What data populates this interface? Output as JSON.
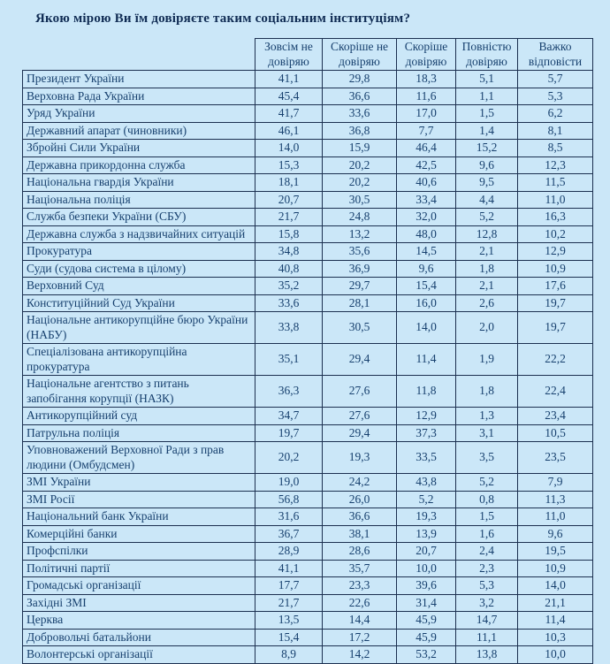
{
  "title": "Якою мірою Ви їм довіряєте таким соціальним інституціям?",
  "colors": {
    "page_background": "#cbe7f8",
    "text": "#17406e",
    "title_text": "#102c54",
    "border": "#1c3050"
  },
  "chart_data": {
    "type": "table",
    "columns": [
      "Зовсім не довіряю",
      "Скоріше  не довіряю",
      "Скоріше довіряю",
      "Повністю довіряю",
      "Важко відповісти"
    ],
    "rows": [
      {
        "label": "Президент України",
        "values": [
          "41,1",
          "29,8",
          "18,3",
          "5,1",
          "5,7"
        ]
      },
      {
        "label": "Верховна Рада України",
        "values": [
          "45,4",
          "36,6",
          "11,6",
          "1,1",
          "5,3"
        ]
      },
      {
        "label": "Уряд України",
        "values": [
          "41,7",
          "33,6",
          "17,0",
          "1,5",
          "6,2"
        ]
      },
      {
        "label": "Державний апарат (чиновники)",
        "values": [
          "46,1",
          "36,8",
          "7,7",
          "1,4",
          "8,1"
        ]
      },
      {
        "label": "Збройні Сили України",
        "values": [
          "14,0",
          "15,9",
          "46,4",
          "15,2",
          "8,5"
        ]
      },
      {
        "label": "Державна прикордонна служба",
        "values": [
          "15,3",
          "20,2",
          "42,5",
          "9,6",
          "12,3"
        ]
      },
      {
        "label": "Національна гвардія України",
        "values": [
          "18,1",
          "20,2",
          "40,6",
          "9,5",
          "11,5"
        ]
      },
      {
        "label": "Національна поліція",
        "values": [
          "20,7",
          "30,5",
          "33,4",
          "4,4",
          "11,0"
        ]
      },
      {
        "label": "Служба безпеки України (СБУ)",
        "values": [
          "21,7",
          "24,8",
          "32,0",
          "5,2",
          "16,3"
        ]
      },
      {
        "label": "Державна служба з надзвичайних ситуацій",
        "values": [
          "15,8",
          "13,2",
          "48,0",
          "12,8",
          "10,2"
        ]
      },
      {
        "label": "Прокуратура",
        "values": [
          "34,8",
          "35,6",
          "14,5",
          "2,1",
          "12,9"
        ]
      },
      {
        "label": "Суди (судова система в цілому)",
        "values": [
          "40,8",
          "36,9",
          "9,6",
          "1,8",
          "10,9"
        ]
      },
      {
        "label": "Верховний Суд",
        "values": [
          "35,2",
          "29,7",
          "15,4",
          "2,1",
          "17,6"
        ]
      },
      {
        "label": "Конституційний Суд України",
        "values": [
          "33,6",
          "28,1",
          "16,0",
          "2,6",
          "19,7"
        ]
      },
      {
        "label": "Національне антикорупційне бюро України (НАБУ)",
        "values": [
          "33,8",
          "30,5",
          "14,0",
          "2,0",
          "19,7"
        ]
      },
      {
        "label": "Спеціалізована антикорупційна прокуратура",
        "values": [
          "35,1",
          "29,4",
          "11,4",
          "1,9",
          "22,2"
        ]
      },
      {
        "label": "Національне агентство з питань запобігання корупції (НАЗК)",
        "values": [
          "36,3",
          "27,6",
          "11,8",
          "1,8",
          "22,4"
        ]
      },
      {
        "label": "Антикорупційний суд",
        "values": [
          "34,7",
          "27,6",
          "12,9",
          "1,3",
          "23,4"
        ]
      },
      {
        "label": "Патрульна поліція",
        "values": [
          "19,7",
          "29,4",
          "37,3",
          "3,1",
          "10,5"
        ]
      },
      {
        "label": "Уповноважений Верховної Ради  з прав людини (Омбудсмен)",
        "values": [
          "20,2",
          "19,3",
          "33,5",
          "3,5",
          "23,5"
        ]
      },
      {
        "label": "ЗМІ України",
        "values": [
          "19,0",
          "24,2",
          "43,8",
          "5,2",
          "7,9"
        ]
      },
      {
        "label": "ЗМІ Росії",
        "values": [
          "56,8",
          "26,0",
          "5,2",
          "0,8",
          "11,3"
        ]
      },
      {
        "label": "Національний банк України",
        "values": [
          "31,6",
          "36,6",
          "19,3",
          "1,5",
          "11,0"
        ]
      },
      {
        "label": "Комерційні банки",
        "values": [
          "36,7",
          "38,1",
          "13,9",
          "1,6",
          "9,6"
        ]
      },
      {
        "label": "Профспілки",
        "values": [
          "28,9",
          "28,6",
          "20,7",
          "2,4",
          "19,5"
        ]
      },
      {
        "label": "Політичні партії",
        "values": [
          "41,1",
          "35,7",
          "10,0",
          "2,3",
          "10,9"
        ]
      },
      {
        "label": "Громадські організації",
        "values": [
          "17,7",
          "23,3",
          "39,6",
          "5,3",
          "14,0"
        ]
      },
      {
        "label": "Західні ЗМІ",
        "values": [
          "21,7",
          "22,6",
          "31,4",
          "3,2",
          "21,1"
        ]
      },
      {
        "label": "Церква",
        "values": [
          "13,5",
          "14,4",
          "45,9",
          "14,7",
          "11,4"
        ]
      },
      {
        "label": "Добровольчі батальйони",
        "values": [
          "15,4",
          "17,2",
          "45,9",
          "11,1",
          "10,3"
        ]
      },
      {
        "label": "Волонтерські організації",
        "values": [
          "8,9",
          "14,2",
          "53,2",
          "13,8",
          "10,0"
        ]
      }
    ]
  }
}
